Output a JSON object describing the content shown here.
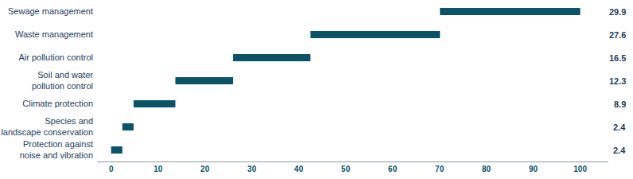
{
  "chart_data": {
    "type": "waterfall",
    "orientation": "horizontal",
    "categories": [
      "Protection against\nnoise and vibration",
      "Species and\nlandscape conservation",
      "Climate protection",
      "Soil and water\npollution control",
      "Air pollution control",
      "Waste management",
      "Sewage management"
    ],
    "values": [
      2.4,
      2.4,
      8.9,
      12.3,
      16.5,
      27.6,
      29.9
    ],
    "color": "#0b5367",
    "xlim": [
      -3,
      106
    ],
    "xticks": [
      0,
      10,
      20,
      30,
      40,
      50,
      60,
      70,
      80,
      90,
      100
    ],
    "grid": false,
    "data_labels": true
  }
}
